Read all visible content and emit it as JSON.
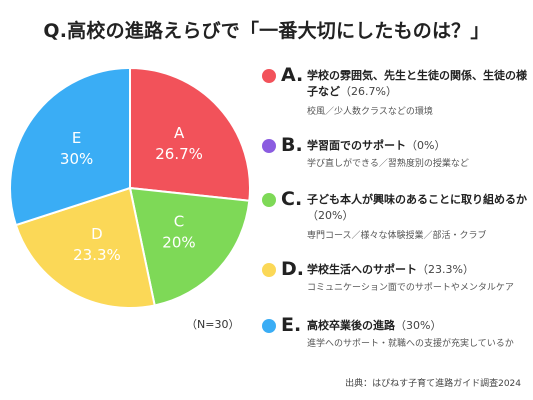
{
  "title": "Q.高校の進路えらびで「一番大切にしたものは？」",
  "note": "（N=30）",
  "source": "出典：はぴねす子育て進路ガイド調査2024",
  "colors": {
    "A": "#F2525A",
    "B": "#8B5CE0",
    "C": "#7ED957",
    "D": "#FBD857",
    "E": "#3AADF5"
  },
  "legend": [
    {
      "letter": "A.",
      "label": "学校の雰囲気、先生と生徒の関係、生徒の様子など",
      "pct": "（26.7%）",
      "desc": "校風／少人数クラスなどの環境"
    },
    {
      "letter": "B.",
      "label": "学習面でのサポート",
      "pct": "（0%）",
      "desc": "学び直しができる／習熟度別の授業など"
    },
    {
      "letter": "C.",
      "label": "子ども本人が興味のあることに取り組めるか",
      "pct": "（20%）",
      "desc": "専門コース／様々な体験授業／部活・クラブ"
    },
    {
      "letter": "D.",
      "label": "学校生活へのサポート",
      "pct": "（23.3%）",
      "desc": "コミュニケーション面でのサポートやメンタルケア"
    },
    {
      "letter": "E.",
      "label": "高校卒業後の進路",
      "pct": "（30%）",
      "desc": "進学へのサポート・就職への支援が充実しているか"
    }
  ],
  "chart_data": {
    "type": "pie",
    "title": "Q.高校の進路えらびで「一番大切にしたものは？」",
    "categories": [
      "A",
      "B",
      "C",
      "D",
      "E"
    ],
    "values": [
      26.7,
      0,
      20,
      23.3,
      30
    ],
    "value_labels": [
      "26.7%",
      "0%",
      "20%",
      "23.3%",
      "30%"
    ],
    "start": "12 o'clock",
    "direction": "clockwise",
    "legend_position": "right"
  }
}
